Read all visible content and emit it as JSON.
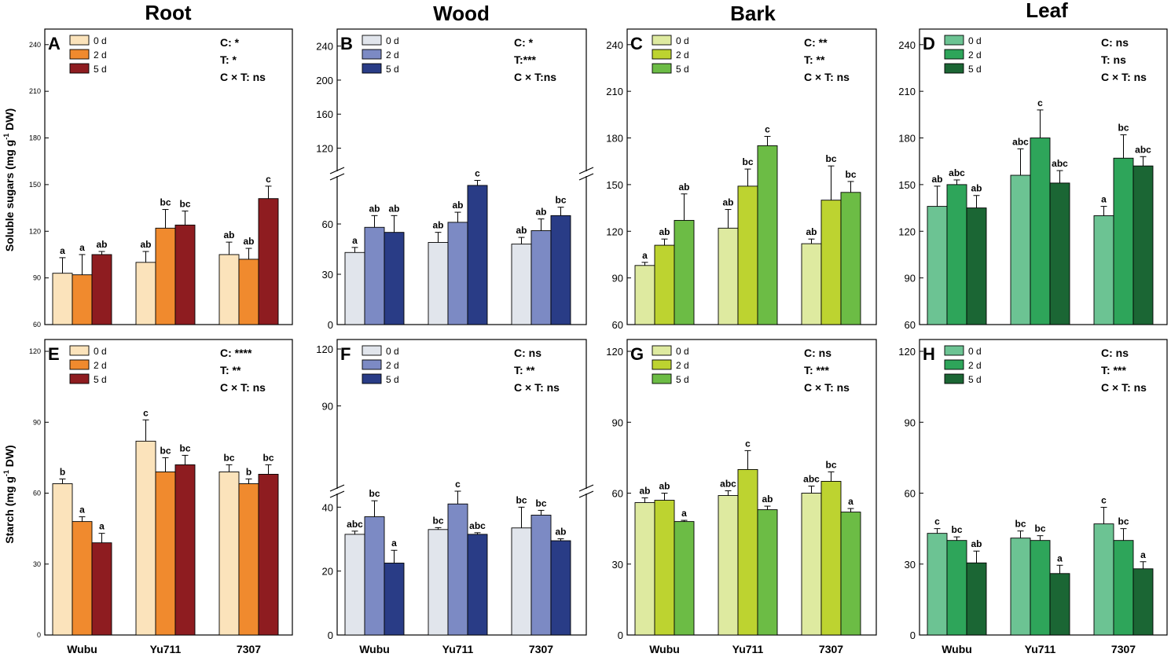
{
  "columns": [
    "Root",
    "Wood",
    "Bark",
    "Leaf"
  ],
  "ylabels": {
    "top": [
      "Soluble sugars (mg g",
      "-1",
      " DW)"
    ],
    "bottom": [
      "Starch (mg g",
      "-1",
      " DW)"
    ]
  },
  "xcategories": [
    "Wubu",
    "Yu711",
    "7307"
  ],
  "legend_labels": [
    "0 d",
    "2 d",
    "5 d"
  ],
  "chart_data": [
    {
      "panel": "A",
      "type": "bar",
      "tissue": "Root",
      "measure": "Soluble sugars",
      "categories": [
        "Wubu",
        "Yu711",
        "7307"
      ],
      "colors": [
        "#fbe3bb",
        "#f08a2e",
        "#8e1c20"
      ],
      "ylim": [
        60,
        250
      ],
      "yticks": [
        60,
        90,
        120,
        150,
        180,
        210,
        240
      ],
      "stats": [
        "C: *",
        "T: *",
        "C × T: ns"
      ],
      "series": [
        {
          "name": "0 d",
          "values": [
            93,
            100,
            105
          ],
          "errors": [
            10,
            7,
            8
          ],
          "letters": [
            "a",
            "ab",
            "ab"
          ]
        },
        {
          "name": "2 d",
          "values": [
            92,
            122,
            102
          ],
          "errors": [
            13,
            12,
            7
          ],
          "letters": [
            "a",
            "bc",
            "ab"
          ]
        },
        {
          "name": "5 d",
          "values": [
            105,
            124,
            141
          ],
          "errors": [
            2,
            9,
            8
          ],
          "letters": [
            "ab",
            "bc",
            "c"
          ]
        }
      ]
    },
    {
      "panel": "B",
      "type": "bar",
      "tissue": "Wood",
      "measure": "Soluble sugars",
      "categories": [
        "Wubu",
        "Yu711",
        "7307"
      ],
      "colors": [
        "#e1e5ec",
        "#7c8ac4",
        "#293c86"
      ],
      "axis_break": {
        "lower": [
          0,
          90
        ],
        "upper": [
          90,
          260
        ]
      },
      "yticks": [
        0,
        30,
        60,
        120,
        160,
        200,
        240
      ],
      "stats": [
        "C: *",
        "T:***",
        "C × T:ns"
      ],
      "series": [
        {
          "name": "0 d",
          "values": [
            43,
            49,
            48
          ],
          "errors": [
            3,
            6,
            4
          ],
          "letters": [
            "a",
            "ab",
            "ab"
          ]
        },
        {
          "name": "2 d",
          "values": [
            58,
            61,
            56
          ],
          "errors": [
            7,
            6,
            7
          ],
          "letters": [
            "ab",
            "ab",
            "ab"
          ]
        },
        {
          "name": "5 d",
          "values": [
            55,
            83,
            65
          ],
          "errors": [
            10,
            3,
            5
          ],
          "letters": [
            "ab",
            "c",
            "bc"
          ]
        }
      ]
    },
    {
      "panel": "C",
      "type": "bar",
      "tissue": "Bark",
      "measure": "Soluble sugars",
      "categories": [
        "Wubu",
        "Yu711",
        "7307"
      ],
      "colors": [
        "#deeaa0",
        "#bdd330",
        "#6cbc45"
      ],
      "ylim": [
        60,
        250
      ],
      "yticks": [
        60,
        90,
        120,
        150,
        180,
        210,
        240
      ],
      "stats": [
        "C: **",
        "T: **",
        "C × T: ns"
      ],
      "series": [
        {
          "name": "0 d",
          "values": [
            98,
            122,
            112
          ],
          "errors": [
            2,
            12,
            3
          ],
          "letters": [
            "a",
            "ab",
            "ab"
          ]
        },
        {
          "name": "2 d",
          "values": [
            111,
            149,
            140
          ],
          "errors": [
            4,
            11,
            22
          ],
          "letters": [
            "ab",
            "bc",
            "bc"
          ]
        },
        {
          "name": "5 d",
          "values": [
            127,
            175,
            145
          ],
          "errors": [
            17,
            6,
            7
          ],
          "letters": [
            "ab",
            "c",
            "bc"
          ]
        }
      ]
    },
    {
      "panel": "D",
      "type": "bar",
      "tissue": "Leaf",
      "measure": "Soluble sugars",
      "categories": [
        "Wubu",
        "Yu711",
        "7307"
      ],
      "colors": [
        "#6cc393",
        "#2ea55a",
        "#1b6634"
      ],
      "ylim": [
        60,
        250
      ],
      "yticks": [
        60,
        90,
        120,
        150,
        180,
        210,
        240
      ],
      "stats": [
        "C: ns",
        "T: ns",
        "C × T: ns"
      ],
      "series": [
        {
          "name": "0 d",
          "values": [
            136,
            156,
            130
          ],
          "errors": [
            13,
            17,
            6
          ],
          "letters": [
            "ab",
            "abc",
            "a"
          ]
        },
        {
          "name": "2 d",
          "values": [
            150,
            180,
            167
          ],
          "errors": [
            3,
            18,
            15
          ],
          "letters": [
            "abc",
            "c",
            "bc"
          ]
        },
        {
          "name": "5 d",
          "values": [
            135,
            151,
            162
          ],
          "errors": [
            8,
            8,
            6
          ],
          "letters": [
            "ab",
            "abc",
            "abc"
          ]
        }
      ]
    },
    {
      "panel": "E",
      "type": "bar",
      "tissue": "Root",
      "measure": "Starch",
      "categories": [
        "Wubu",
        "Yu711",
        "7307"
      ],
      "colors": [
        "#fbe3bb",
        "#f08a2e",
        "#8e1c20"
      ],
      "ylim": [
        0,
        125
      ],
      "yticks": [
        0,
        30,
        60,
        90,
        120
      ],
      "stats": [
        "C: ****",
        "T: **",
        "C × T: ns"
      ],
      "series": [
        {
          "name": "0 d",
          "values": [
            64,
            82,
            69
          ],
          "errors": [
            2,
            9,
            3
          ],
          "letters": [
            "b",
            "c",
            "bc"
          ]
        },
        {
          "name": "2 d",
          "values": [
            48,
            69,
            64
          ],
          "errors": [
            2,
            6,
            2
          ],
          "letters": [
            "a",
            "bc",
            "b"
          ]
        },
        {
          "name": "5 d",
          "values": [
            39,
            72,
            68
          ],
          "errors": [
            4,
            4,
            4
          ],
          "letters": [
            "a",
            "bc",
            "bc"
          ]
        }
      ]
    },
    {
      "panel": "F",
      "type": "bar",
      "tissue": "Wood",
      "measure": "Starch",
      "categories": [
        "Wubu",
        "Yu711",
        "7307"
      ],
      "colors": [
        "#e1e5ec",
        "#7c8ac4",
        "#293c86"
      ],
      "axis_break": {
        "lower": [
          0,
          45
        ],
        "upper": [
          45,
          125
        ]
      },
      "yticks": [
        0,
        20,
        40,
        90,
        120
      ],
      "stats": [
        "C: ns",
        "T: **",
        "C × T: ns"
      ],
      "series": [
        {
          "name": "0 d",
          "values": [
            31.5,
            33,
            33.5
          ],
          "errors": [
            1,
            0.6,
            6.5
          ],
          "letters": [
            "abc",
            "bc",
            "bc"
          ]
        },
        {
          "name": "2 d",
          "values": [
            37,
            41,
            37.5
          ],
          "errors": [
            5,
            4,
            1.5
          ],
          "letters": [
            "bc",
            "c",
            "bc"
          ]
        },
        {
          "name": "5 d",
          "values": [
            22.5,
            31.5,
            29.5
          ],
          "errors": [
            4,
            0.5,
            0.6
          ],
          "letters": [
            "a",
            "abc",
            "ab"
          ]
        }
      ]
    },
    {
      "panel": "G",
      "type": "bar",
      "tissue": "Bark",
      "measure": "Starch",
      "categories": [
        "Wubu",
        "Yu711",
        "7307"
      ],
      "colors": [
        "#deeaa0",
        "#bdd330",
        "#6cbc45"
      ],
      "ylim": [
        0,
        125
      ],
      "yticks": [
        0,
        30,
        60,
        90,
        120
      ],
      "stats": [
        "C: ns",
        "T: ***",
        "C × T: ns"
      ],
      "series": [
        {
          "name": "0 d",
          "values": [
            56,
            59,
            60
          ],
          "errors": [
            2,
            2,
            3
          ],
          "letters": [
            "ab",
            "abc",
            "abc"
          ]
        },
        {
          "name": "2 d",
          "values": [
            57,
            70,
            65
          ],
          "errors": [
            3,
            8,
            4
          ],
          "letters": [
            "ab",
            "c",
            "bc"
          ]
        },
        {
          "name": "5 d",
          "values": [
            48,
            53,
            52
          ],
          "errors": [
            0.5,
            1.5,
            1.5
          ],
          "letters": [
            "a",
            "ab",
            "a"
          ]
        }
      ]
    },
    {
      "panel": "H",
      "type": "bar",
      "tissue": "Leaf",
      "measure": "Starch",
      "categories": [
        "Wubu",
        "Yu711",
        "7307"
      ],
      "colors": [
        "#6cc393",
        "#2ea55a",
        "#1b6634"
      ],
      "ylim": [
        0,
        125
      ],
      "yticks": [
        0,
        30,
        60,
        90,
        120
      ],
      "stats": [
        "C: ns",
        "T: ***",
        "C × T: ns"
      ],
      "series": [
        {
          "name": "0 d",
          "values": [
            43,
            41,
            47
          ],
          "errors": [
            2,
            3,
            7
          ],
          "letters": [
            "c",
            "bc",
            "c"
          ]
        },
        {
          "name": "2 d",
          "values": [
            40,
            40,
            40
          ],
          "errors": [
            1.5,
            2,
            5
          ],
          "letters": [
            "bc",
            "bc",
            "bc"
          ]
        },
        {
          "name": "5 d",
          "values": [
            30.5,
            26,
            28
          ],
          "errors": [
            5,
            3.5,
            3
          ],
          "letters": [
            "ab",
            "a",
            "a"
          ]
        }
      ]
    }
  ]
}
